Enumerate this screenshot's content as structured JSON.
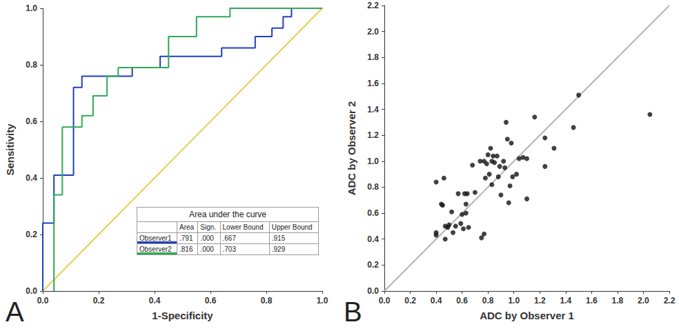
{
  "chart_data": [
    {
      "type": "line",
      "annotations": [
        "A"
      ],
      "xlabel": "1-Specificity",
      "ylabel": "Sensitivity",
      "xlim": [
        0,
        1
      ],
      "ylim": [
        0,
        1
      ],
      "xticks": [
        {
          "value": 0,
          "label": "0.0"
        },
        0.2,
        0.4,
        0.6,
        0.8,
        {
          "value": 1,
          "label": "1.0"
        }
      ],
      "yticks": [
        {
          "value": 0,
          "label": "0.0"
        },
        0.2,
        0.4,
        0.6,
        0.8,
        {
          "value": 1,
          "label": "1.0"
        }
      ],
      "grid": false,
      "series": [
        {
          "name": "Observer1",
          "color": "#1f3fbf",
          "line_style": "solid",
          "x": [
            0,
            0,
            0.04,
            0.04,
            0.11,
            0.11,
            0.14,
            0.14,
            0.32,
            0.32,
            0.42,
            0.42,
            0.64,
            0.64,
            0.76,
            0.76,
            0.82,
            0.82,
            0.86,
            0.86,
            0.89,
            0.89,
            1
          ],
          "values": [
            0,
            0.24,
            0.24,
            0.41,
            0.41,
            0.72,
            0.72,
            0.76,
            0.76,
            0.79,
            0.79,
            0.83,
            0.83,
            0.86,
            0.86,
            0.9,
            0.9,
            0.93,
            0.93,
            0.97,
            0.97,
            1,
            1
          ]
        },
        {
          "name": "Observer2",
          "color": "#2eaa55",
          "line_style": "solid",
          "x": [
            0.04,
            0.04,
            0.07,
            0.07,
            0.14,
            0.14,
            0.18,
            0.18,
            0.23,
            0.23,
            0.27,
            0.27,
            0.37,
            0.37,
            0.45,
            0.45,
            0.55,
            0.55,
            0.67,
            0.67,
            1
          ],
          "values": [
            0,
            0.34,
            0.34,
            0.58,
            0.58,
            0.62,
            0.62,
            0.69,
            0.69,
            0.76,
            0.76,
            0.79,
            0.79,
            0.79,
            0.79,
            0.9,
            0.9,
            0.97,
            0.97,
            1,
            1
          ]
        },
        {
          "type": "line",
          "color": "#e6cf4a",
          "line_style": "solid",
          "x": [
            0,
            1
          ],
          "values": [
            0,
            1
          ]
        }
      ],
      "table": {
        "title": "Area under the curve",
        "columns": [
          "",
          "Area",
          "Sign.",
          "Lower Bound",
          "Upper Bound"
        ],
        "rows": [
          [
            "Observer1",
            ".791",
            ".000",
            ".667",
            ".915"
          ],
          [
            "Observer2",
            ".816",
            ".000",
            ".703",
            ".929"
          ]
        ]
      }
    },
    {
      "type": "scatter",
      "annotations": [
        "B"
      ],
      "xlabel": "ADC by Observer 1",
      "ylabel": "ADC by Observer 2",
      "xlim": [
        0,
        2.2
      ],
      "ylim": [
        0,
        2.2
      ],
      "xticks": [
        {
          "value": 0,
          "label": "0.0"
        },
        0.2,
        0.4,
        0.6,
        0.8,
        {
          "value": 1,
          "label": "1.0"
        },
        1.2,
        1.4,
        1.6,
        1.8,
        {
          "value": 2,
          "label": "2.0"
        },
        2.2
      ],
      "yticks": [
        {
          "value": 0,
          "label": "0.0"
        },
        0.2,
        0.4,
        0.6,
        0.8,
        {
          "value": 1,
          "label": "1.0"
        },
        1.2,
        1.4,
        1.6,
        1.8,
        {
          "value": 2,
          "label": "2.0"
        },
        2.2
      ],
      "grid": false,
      "series": [
        {
          "type": "line",
          "color": "#b4b4b4",
          "line_style": "solid",
          "x": [
            0,
            2.2
          ],
          "values": [
            0,
            2.2
          ]
        },
        {
          "type": "scatter",
          "color": "#111111",
          "marker": "circle",
          "x": [
            0.4,
            0.4,
            0.4,
            0.44,
            0.45,
            0.46,
            0.47,
            0.47,
            0.49,
            0.5,
            0.52,
            0.53,
            0.55,
            0.57,
            0.59,
            0.6,
            0.61,
            0.62,
            0.63,
            0.63,
            0.64,
            0.65,
            0.68,
            0.7,
            0.74,
            0.75,
            0.77,
            0.77,
            0.78,
            0.79,
            0.8,
            0.81,
            0.82,
            0.83,
            0.83,
            0.84,
            0.85,
            0.87,
            0.88,
            0.89,
            0.9,
            0.92,
            0.93,
            0.94,
            0.95,
            0.96,
            0.97,
            0.98,
            0.99,
            1.02,
            1.04,
            1.07,
            1.1,
            1.1,
            1.16,
            1.24,
            1.24,
            1.31,
            1.46,
            1.5,
            2.05
          ],
          "values": [
            0.84,
            0.45,
            0.43,
            0.67,
            0.66,
            0.87,
            0.5,
            0.4,
            0.49,
            0.51,
            0.61,
            0.45,
            0.5,
            0.75,
            0.52,
            0.59,
            0.48,
            0.75,
            0.67,
            0.6,
            0.75,
            0.49,
            0.97,
            0.76,
            1.0,
            0.41,
            1.0,
            0.44,
            0.87,
            0.98,
            1.05,
            0.9,
            1.1,
            0.82,
            1.0,
            1.04,
            0.99,
            1.04,
            0.88,
            0.96,
            0.74,
            1.0,
            0.95,
            1.3,
            1.17,
            0.68,
            0.81,
            1.14,
            0.88,
            0.9,
            1.02,
            1.03,
            1.02,
            0.71,
            1.34,
            1.18,
            0.96,
            1.1,
            1.26,
            1.51,
            1.36
          ]
        }
      ]
    }
  ]
}
